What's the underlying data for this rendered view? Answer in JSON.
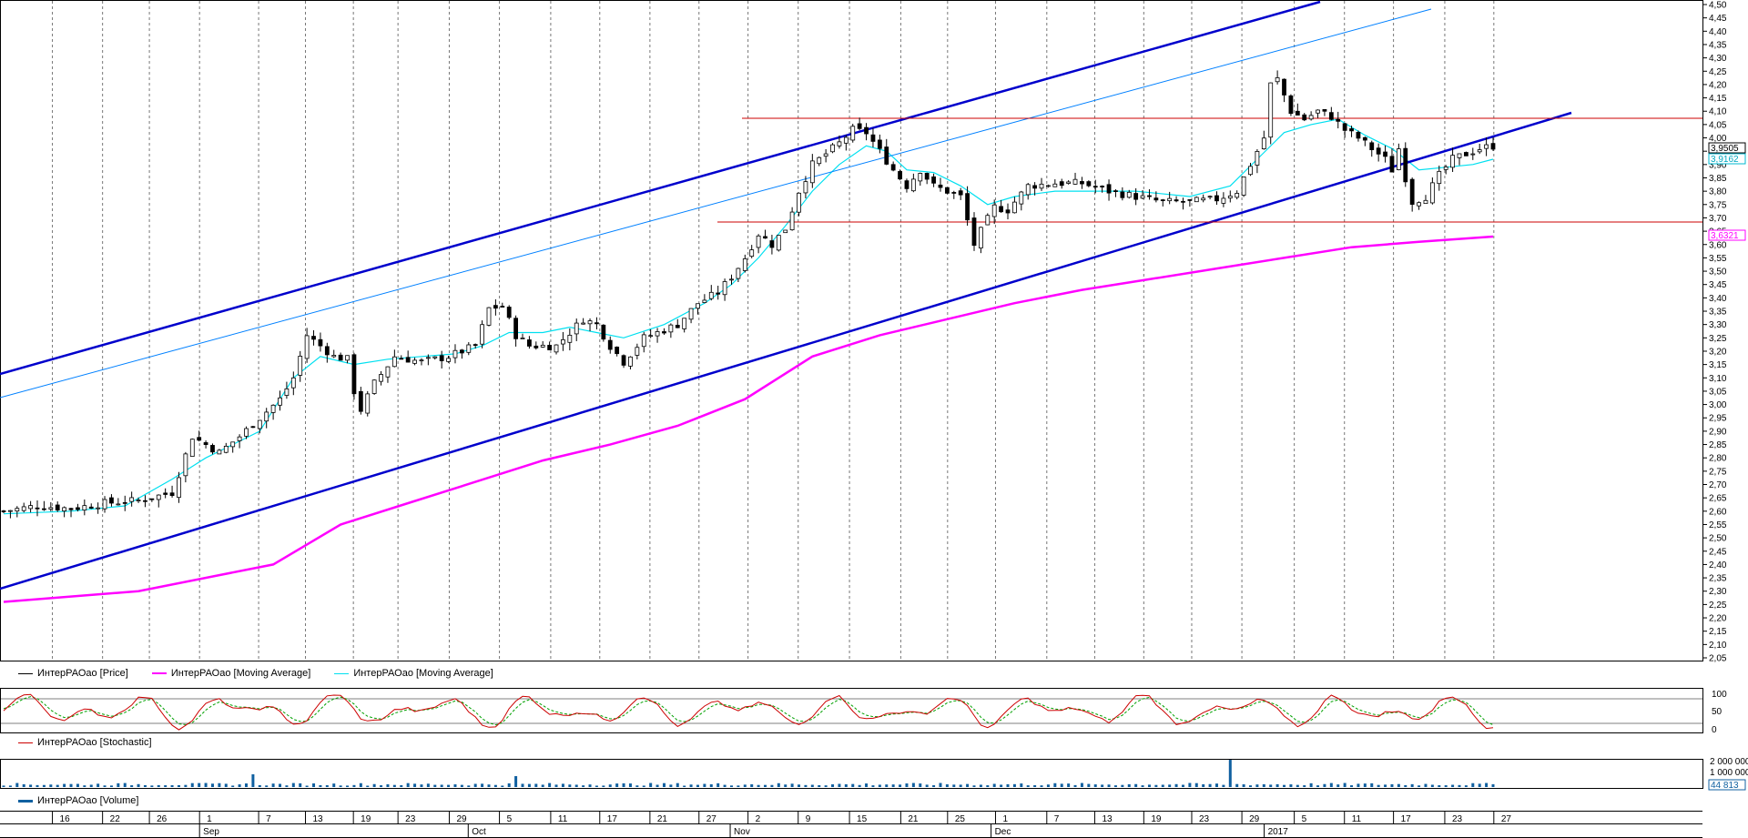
{
  "chart_data": [
    {
      "type": "candlestick",
      "title": "",
      "y_axis": {
        "min": 2.05,
        "max": 4.5,
        "step": 0.05,
        "decimal_separator": ",",
        "ticks": [
          "4,50",
          "4,45",
          "4,40",
          "4,35",
          "4,30",
          "4,25",
          "4,20",
          "4,15",
          "4,10",
          "4,05",
          "4,00",
          "3,95",
          "3,90",
          "3,85",
          "3,80",
          "3,75",
          "3,70",
          "3,65",
          "3,60",
          "3,55",
          "3,50",
          "3,45",
          "3,40",
          "3,35",
          "3,30",
          "3,25",
          "3,20",
          "3,15",
          "3,10",
          "3,05",
          "3,00",
          "2,95",
          "2,90",
          "2,85",
          "2,80",
          "2,75",
          "2,70",
          "2,65",
          "2,60",
          "2,55",
          "2,50",
          "2,45",
          "2,40",
          "2,35",
          "2,30",
          "2,25",
          "2,20",
          "2,15",
          "2,10",
          "2,05"
        ]
      },
      "grid": "vertical dotted",
      "price_series": {
        "name": "ИнтерРАОао [Price]",
        "color": "#000000",
        "close_path": [
          [
            0,
            2.6
          ],
          [
            5,
            2.62
          ],
          [
            10,
            2.61
          ],
          [
            15,
            2.63
          ],
          [
            20,
            2.64
          ],
          [
            25,
            2.67
          ],
          [
            27,
            2.81
          ],
          [
            28,
            2.88
          ],
          [
            30,
            2.85
          ],
          [
            32,
            2.82
          ],
          [
            35,
            2.88
          ],
          [
            38,
            2.95
          ],
          [
            41,
            3.02
          ],
          [
            43,
            3.1
          ],
          [
            45,
            3.26
          ],
          [
            47,
            3.22
          ],
          [
            49,
            3.18
          ],
          [
            51,
            3.17
          ],
          [
            52,
            3.05
          ],
          [
            53,
            2.98
          ],
          [
            55,
            3.08
          ],
          [
            58,
            3.18
          ],
          [
            62,
            3.16
          ],
          [
            66,
            3.18
          ],
          [
            70,
            3.22
          ],
          [
            72,
            3.36
          ],
          [
            74,
            3.37
          ],
          [
            76,
            3.26
          ],
          [
            78,
            3.22
          ],
          [
            82,
            3.22
          ],
          [
            86,
            3.32
          ],
          [
            88,
            3.3
          ],
          [
            90,
            3.22
          ],
          [
            92,
            3.16
          ],
          [
            95,
            3.25
          ],
          [
            100,
            3.3
          ],
          [
            103,
            3.38
          ],
          [
            106,
            3.42
          ],
          [
            108,
            3.48
          ],
          [
            110,
            3.55
          ],
          [
            112,
            3.64
          ],
          [
            114,
            3.6
          ],
          [
            116,
            3.66
          ],
          [
            118,
            3.8
          ],
          [
            120,
            3.9
          ],
          [
            122,
            3.94
          ],
          [
            124,
            3.98
          ],
          [
            126,
            4.03
          ],
          [
            128,
            4.02
          ],
          [
            130,
            3.95
          ],
          [
            132,
            3.88
          ],
          [
            134,
            3.82
          ],
          [
            136,
            3.88
          ],
          [
            138,
            3.82
          ],
          [
            140,
            3.8
          ],
          [
            142,
            3.78
          ],
          [
            144,
            3.6
          ],
          [
            145,
            3.65
          ],
          [
            147,
            3.74
          ],
          [
            149,
            3.73
          ],
          [
            152,
            3.82
          ],
          [
            156,
            3.83
          ],
          [
            160,
            3.83
          ],
          [
            164,
            3.8
          ],
          [
            168,
            3.78
          ],
          [
            172,
            3.76
          ],
          [
            176,
            3.76
          ],
          [
            180,
            3.77
          ],
          [
            183,
            3.8
          ],
          [
            185,
            3.9
          ],
          [
            187,
            4.0
          ],
          [
            188,
            4.2
          ],
          [
            189,
            4.22
          ],
          [
            191,
            4.1
          ],
          [
            193,
            4.07
          ],
          [
            195,
            4.1
          ],
          [
            197,
            4.08
          ],
          [
            199,
            4.03
          ],
          [
            201,
            4.0
          ],
          [
            203,
            3.96
          ],
          [
            205,
            3.92
          ],
          [
            206,
            3.88
          ],
          [
            207,
            3.96
          ],
          [
            208,
            3.85
          ],
          [
            209,
            3.76
          ],
          [
            211,
            3.78
          ],
          [
            213,
            3.86
          ],
          [
            215,
            3.92
          ],
          [
            217,
            3.94
          ],
          [
            219,
            3.96
          ],
          [
            221,
            3.97
          ]
        ]
      },
      "moving_averages": [
        {
          "name": "ИнтерРАОао [Moving Average]",
          "color": "#ff00ff",
          "last_value": "3,6321",
          "points": [
            [
              0,
              2.26
            ],
            [
              20,
              2.3
            ],
            [
              40,
              2.4
            ],
            [
              50,
              2.55
            ],
            [
              60,
              2.63
            ],
            [
              70,
              2.71
            ],
            [
              80,
              2.79
            ],
            [
              90,
              2.85
            ],
            [
              100,
              2.92
            ],
            [
              110,
              3.02
            ],
            [
              120,
              3.18
            ],
            [
              130,
              3.26
            ],
            [
              140,
              3.32
            ],
            [
              150,
              3.38
            ],
            [
              160,
              3.43
            ],
            [
              170,
              3.47
            ],
            [
              180,
              3.51
            ],
            [
              190,
              3.55
            ],
            [
              200,
              3.59
            ],
            [
              210,
              3.61
            ],
            [
              221,
              3.63
            ]
          ]
        },
        {
          "name": "ИнтерРАОао [Moving Average]",
          "color": "#00e0f0",
          "last_value": "3,9162",
          "points": [
            [
              0,
              2.59
            ],
            [
              10,
              2.6
            ],
            [
              18,
              2.62
            ],
            [
              25,
              2.72
            ],
            [
              30,
              2.8
            ],
            [
              38,
              2.9
            ],
            [
              43,
              3.1
            ],
            [
              47,
              3.18
            ],
            [
              52,
              3.15
            ],
            [
              57,
              3.17
            ],
            [
              62,
              3.18
            ],
            [
              67,
              3.19
            ],
            [
              71,
              3.22
            ],
            [
              75,
              3.27
            ],
            [
              80,
              3.27
            ],
            [
              84,
              3.29
            ],
            [
              88,
              3.27
            ],
            [
              92,
              3.25
            ],
            [
              98,
              3.3
            ],
            [
              104,
              3.38
            ],
            [
              108,
              3.45
            ],
            [
              112,
              3.55
            ],
            [
              116,
              3.67
            ],
            [
              120,
              3.8
            ],
            [
              124,
              3.9
            ],
            [
              128,
              3.97
            ],
            [
              131,
              3.95
            ],
            [
              134,
              3.88
            ],
            [
              138,
              3.87
            ],
            [
              142,
              3.82
            ],
            [
              146,
              3.75
            ],
            [
              150,
              3.78
            ],
            [
              156,
              3.8
            ],
            [
              162,
              3.8
            ],
            [
              168,
              3.8
            ],
            [
              176,
              3.78
            ],
            [
              182,
              3.82
            ],
            [
              186,
              3.92
            ],
            [
              190,
              4.02
            ],
            [
              194,
              4.05
            ],
            [
              198,
              4.07
            ],
            [
              202,
              4.01
            ],
            [
              206,
              3.96
            ],
            [
              210,
              3.88
            ],
            [
              214,
              3.89
            ],
            [
              218,
              3.9
            ],
            [
              221,
              3.92
            ]
          ]
        }
      ],
      "last_price": "3,9505",
      "legend": [
        "ИнтерРАОао [Price]",
        "ИнтерРАОао [Moving Average]",
        "ИнтерРАОао [Moving Average]"
      ]
    },
    {
      "type": "line",
      "title": "",
      "series": [
        {
          "name": "ИнтерРАОао [Stochastic]",
          "color": "#cc0000"
        }
      ],
      "y_axis": {
        "min": 0,
        "max": 100,
        "ticks": [
          "100",
          "50",
          "0"
        ]
      },
      "levels": [
        80,
        20
      ]
    },
    {
      "type": "bar",
      "title": "",
      "series": [
        {
          "name": "ИнтерРАОао [Volume]",
          "color": "#1060a0",
          "last_value": "44 813"
        }
      ],
      "y_axis": {
        "ticks": [
          "2 000 000",
          "1 000 000"
        ]
      }
    }
  ],
  "x_axis": {
    "day_labels": [
      "16",
      "22",
      "26",
      "1",
      "7",
      "13",
      "19",
      "23",
      "29",
      "5",
      "11",
      "17",
      "21",
      "27",
      "2",
      "9",
      "15",
      "21",
      "25",
      "1",
      "7",
      "13",
      "19",
      "23",
      "29",
      "5",
      "11",
      "17",
      "23",
      "27"
    ],
    "month_labels": [
      "Sep",
      "Oct",
      "Nov",
      "Dec",
      "2017"
    ]
  }
}
